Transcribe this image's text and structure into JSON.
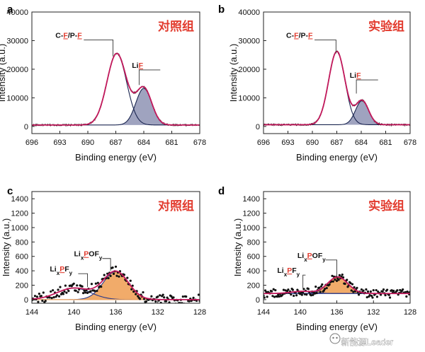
{
  "watermark": "新能源Leader",
  "colors": {
    "fit": "#c2185b",
    "raw": "#111111",
    "lif_fill": "#8e93b4",
    "p_fill": "#efa25a",
    "group_title": "#e23b2e"
  },
  "chart_data": [
    {
      "panel": "a",
      "type": "line",
      "group_title": "对照组",
      "xlabel": "Binding energy (eV)",
      "ylabel": "Intensity (a.u.)",
      "xlim": [
        696,
        678
      ],
      "ylim": [
        -2500,
        40000
      ],
      "x_reversed": true,
      "grid": false,
      "xticks": [
        696,
        693,
        690,
        687,
        684,
        681,
        678
      ],
      "yticks": [
        0,
        10000,
        20000,
        30000,
        40000
      ],
      "baseline": 500,
      "peaks": [
        {
          "label": "C-F/P-F",
          "label_parts": [
            "C-",
            "F",
            "/P-",
            "F"
          ],
          "center": 686.9,
          "height": 25000,
          "sigma": 1.05,
          "fill": "none"
        },
        {
          "label": "LiF",
          "label_parts": [
            "Li",
            "F"
          ],
          "center": 684.0,
          "height": 12800,
          "sigma": 0.85,
          "fill": "lif"
        }
      ],
      "annotations": [
        {
          "for_peak": 0,
          "tip": [
            687.3,
            24500
          ],
          "text_at": [
            691.8,
            31000
          ]
        },
        {
          "for_peak": 1,
          "tip": [
            684.5,
            14500
          ],
          "text_at": [
            683.6,
            20500
          ]
        }
      ]
    },
    {
      "panel": "b",
      "type": "line",
      "group_title": "实验组",
      "xlabel": "Binding energy (eV)",
      "ylabel": "Intensity (a.u.)",
      "xlim": [
        696,
        678
      ],
      "ylim": [
        -2500,
        40000
      ],
      "x_reversed": true,
      "grid": false,
      "xticks": [
        696,
        693,
        690,
        687,
        684,
        681,
        678
      ],
      "yticks": [
        0,
        10000,
        20000,
        30000,
        40000
      ],
      "baseline": 600,
      "peaks": [
        {
          "label": "C-F/P-F",
          "label_parts": [
            "C-",
            "F",
            "/P-",
            "F"
          ],
          "center": 687.0,
          "height": 25600,
          "sigma": 1.0,
          "fill": "none"
        },
        {
          "label": "LiF",
          "label_parts": [
            "Li",
            "F"
          ],
          "center": 683.9,
          "height": 8400,
          "sigma": 0.8,
          "fill": "lif"
        }
      ],
      "annotations": [
        {
          "for_peak": 0,
          "tip": [
            687.1,
            25500
          ],
          "text_at": [
            691.3,
            31000
          ]
        },
        {
          "for_peak": 1,
          "tip": [
            684.6,
            11500
          ],
          "text_at": [
            683.5,
            17000
          ]
        }
      ]
    },
    {
      "panel": "c",
      "type": "scatter",
      "group_title": "对照组",
      "xlabel": "Binding energy (eV)",
      "ylabel": "Intensity (a.u.)",
      "xlim": [
        144,
        128
      ],
      "ylim": [
        -50,
        1500
      ],
      "x_reversed": true,
      "grid": false,
      "xticks": [
        144,
        140,
        136,
        132,
        128
      ],
      "yticks": [
        0,
        200,
        400,
        600,
        800,
        1000,
        1200,
        1400
      ],
      "baseline": 0,
      "peaks": [
        {
          "label": "LixPF_y",
          "label_parts": [
            "Li",
            "x",
            "P",
            "F",
            "y"
          ],
          "center": 140.0,
          "height": 160,
          "sigma": 1.6,
          "fill": "none"
        },
        {
          "label": "LixPOF_y",
          "label_parts": [
            "Li",
            "x",
            "P",
            "OF",
            "y"
          ],
          "center": 136.0,
          "height": 390,
          "sigma": 1.2,
          "fill": "p"
        }
      ],
      "annotations": [
        {
          "for_peak": 0,
          "tip": [
            138.7,
            175
          ],
          "text_at": [
            140.8,
            390
          ]
        },
        {
          "for_peak": 1,
          "tip": [
            136.5,
            400
          ],
          "text_at": [
            138.5,
            600
          ]
        }
      ]
    },
    {
      "panel": "d",
      "type": "scatter",
      "group_title": "实验组",
      "xlabel": "Binding energy (eV)",
      "ylabel": "Intensity (a.u.)",
      "xlim": [
        144,
        128
      ],
      "ylim": [
        -50,
        1500
      ],
      "x_reversed": true,
      "grid": false,
      "xticks": [
        144,
        140,
        136,
        132,
        128
      ],
      "yticks": [
        0,
        200,
        400,
        600,
        800,
        1000,
        1200,
        1400
      ],
      "baseline": 85,
      "peaks": [
        {
          "label": "LixPF_y",
          "label_parts": [
            "Li",
            "x",
            "P",
            "F",
            "y"
          ],
          "center": 139.8,
          "height": 30,
          "sigma": 1.2,
          "fill": "none"
        },
        {
          "label": "LixPOF_y",
          "label_parts": [
            "Li",
            "x",
            "P",
            "OF",
            "y"
          ],
          "center": 135.9,
          "height": 230,
          "sigma": 1.1,
          "fill": "p"
        }
      ],
      "annotations": [
        {
          "for_peak": 0,
          "tip": [
            139.7,
            160
          ],
          "text_at": [
            140.8,
            370
          ]
        },
        {
          "for_peak": 1,
          "tip": [
            136.0,
            310
          ],
          "text_at": [
            138.6,
            580
          ]
        }
      ]
    }
  ]
}
